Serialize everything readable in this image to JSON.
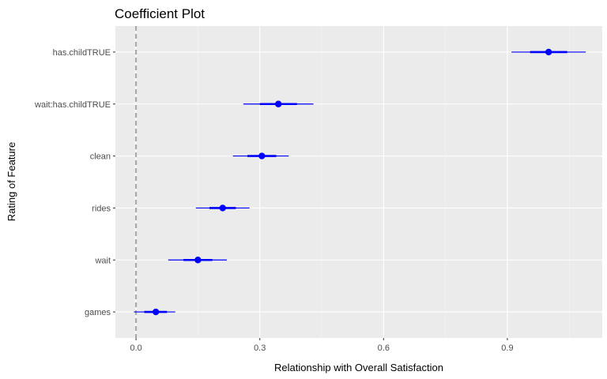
{
  "chart_data": {
    "type": "coefficient-plot",
    "title": "Coefficient Plot",
    "xlabel": "Relationship with Overall Satisfaction",
    "ylabel": "Rating of Feature",
    "xlim": [
      -0.05,
      1.13
    ],
    "xticks": [
      0.0,
      0.3,
      0.6,
      0.9
    ],
    "xtick_labels": [
      "0.0",
      "0.3",
      "0.6",
      "0.9"
    ],
    "reference_line": {
      "x": 0,
      "style": "dashed",
      "color": "#a6a6a6"
    },
    "grid": true,
    "categories": [
      "has.childTRUE",
      "wait:has.childTRUE",
      "clean",
      "rides",
      "wait",
      "games"
    ],
    "estimates": [
      {
        "term": "has.childTRUE",
        "estimate": 1.0,
        "inner": [
          0.955,
          1.045
        ],
        "outer": [
          0.91,
          1.09
        ]
      },
      {
        "term": "wait:has.childTRUE",
        "estimate": 0.345,
        "inner": [
          0.3,
          0.39
        ],
        "outer": [
          0.26,
          0.43
        ]
      },
      {
        "term": "clean",
        "estimate": 0.305,
        "inner": [
          0.27,
          0.34
        ],
        "outer": [
          0.235,
          0.37
        ]
      },
      {
        "term": "rides",
        "estimate": 0.21,
        "inner": [
          0.178,
          0.242
        ],
        "outer": [
          0.145,
          0.275
        ]
      },
      {
        "term": "wait",
        "estimate": 0.15,
        "inner": [
          0.115,
          0.185
        ],
        "outer": [
          0.078,
          0.22
        ]
      },
      {
        "term": "games",
        "estimate": 0.048,
        "inner": [
          0.02,
          0.075
        ],
        "outer": [
          -0.005,
          0.095
        ]
      }
    ],
    "colors": {
      "point": "#0000ff",
      "interval": "#0000ff",
      "panel": "#ebebeb",
      "grid": "#ffffff"
    }
  }
}
